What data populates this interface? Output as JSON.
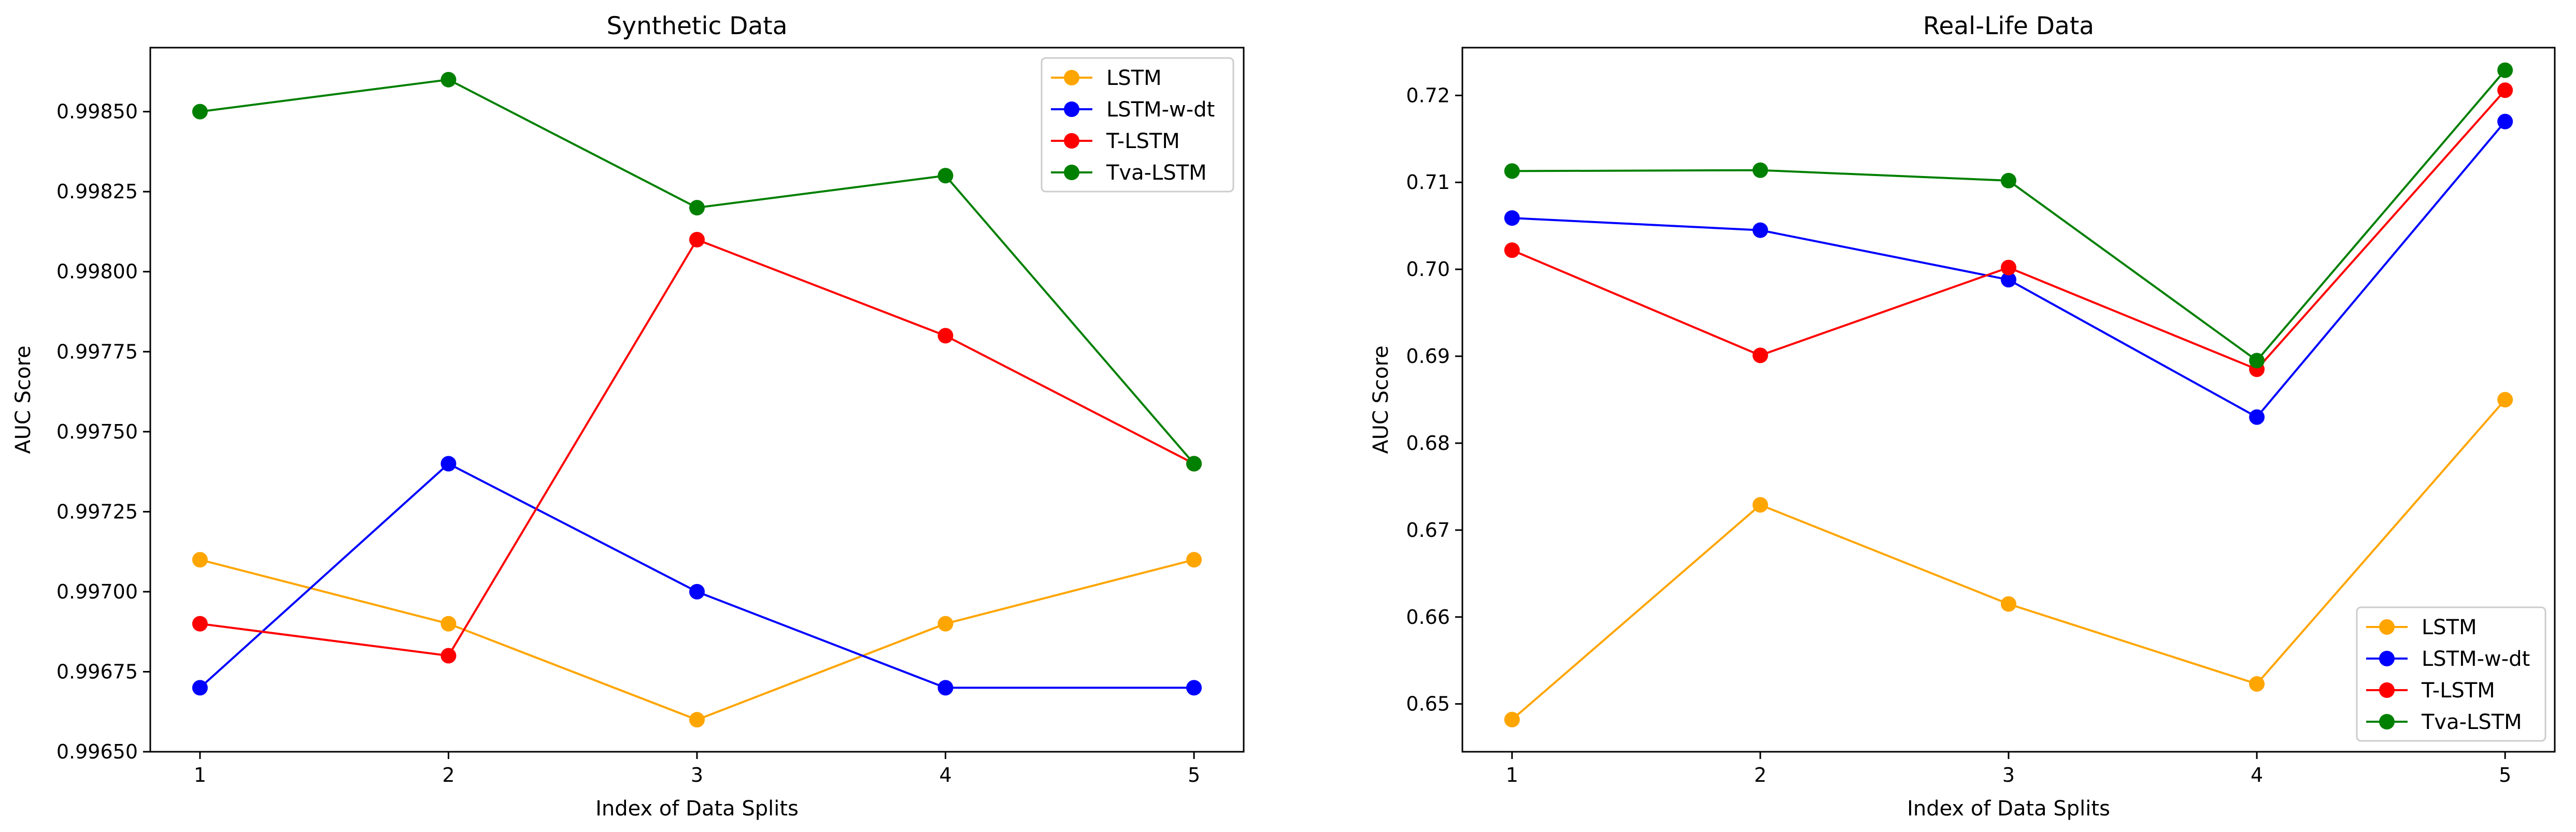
{
  "chart_data": [
    {
      "type": "line",
      "title": "Synthetic Data",
      "xlabel": "Index of Data Splits",
      "ylabel": "AUC Score",
      "x": [
        1,
        2,
        3,
        4,
        5
      ],
      "xlim": [
        0.8,
        5.2
      ],
      "ylim": [
        0.9965,
        0.9987
      ],
      "x_ticks": [
        "1",
        "2",
        "3",
        "4",
        "5"
      ],
      "y_ticks": [
        "0.99650",
        "0.99675",
        "0.99700",
        "0.99725",
        "0.99750",
        "0.99775",
        "0.99800",
        "0.99825",
        "0.99850"
      ],
      "grid": false,
      "legend_position": "top-right",
      "series": [
        {
          "name": "LSTM",
          "color": "#ffa500",
          "values": [
            0.9971,
            0.9969,
            0.9966,
            0.9969,
            0.9971
          ]
        },
        {
          "name": "LSTM-w-dt",
          "color": "#0000ff",
          "values": [
            0.9967,
            0.9974,
            0.997,
            0.9967,
            0.9967
          ]
        },
        {
          "name": "T-LSTM",
          "color": "#ff0000",
          "values": [
            0.9969,
            0.9968,
            0.9981,
            0.9978,
            0.9974
          ]
        },
        {
          "name": "Tva-LSTM",
          "color": "#008000",
          "values": [
            0.9985,
            0.9986,
            0.9982,
            0.9983,
            0.9974
          ]
        }
      ]
    },
    {
      "type": "line",
      "title": "Real-Life Data",
      "xlabel": "Index of Data Splits",
      "ylabel": "AUC Score",
      "x": [
        1,
        2,
        3,
        4,
        5
      ],
      "xlim": [
        0.8,
        5.2
      ],
      "ylim": [
        0.6445,
        0.7255
      ],
      "x_ticks": [
        "1",
        "2",
        "3",
        "4",
        "5"
      ],
      "y_ticks": [
        "0.65",
        "0.66",
        "0.67",
        "0.68",
        "0.69",
        "0.70",
        "0.71",
        "0.72"
      ],
      "grid": false,
      "legend_position": "bottom-right",
      "series": [
        {
          "name": "LSTM",
          "color": "#ffa500",
          "values": [
            0.6482,
            0.6729,
            0.6615,
            0.6523,
            0.685
          ]
        },
        {
          "name": "LSTM-w-dt",
          "color": "#0000ff",
          "values": [
            0.7059,
            0.7045,
            0.6988,
            0.683,
            0.717
          ]
        },
        {
          "name": "T-LSTM",
          "color": "#ff0000",
          "values": [
            0.7022,
            0.6901,
            0.7002,
            0.6885,
            0.7206
          ]
        },
        {
          "name": "Tva-LSTM",
          "color": "#008000",
          "values": [
            0.7113,
            0.7114,
            0.7102,
            0.6895,
            0.7229
          ]
        }
      ]
    }
  ]
}
